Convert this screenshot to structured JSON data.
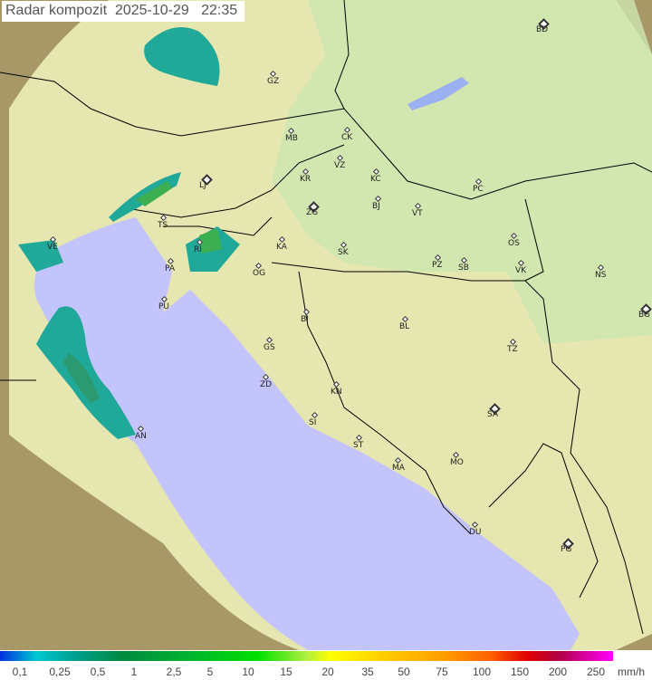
{
  "header": {
    "title": "Radar kompozit",
    "date": "2025-10-29",
    "time": "22:35"
  },
  "colors": {
    "sea": "#c4c4fc",
    "terrain": "#b8a878",
    "coverage": "#e8ecb0",
    "lowland": "#cfe8b0",
    "rain": "#20b0a0",
    "border": "#000000"
  },
  "legend": {
    "unit": "mm/h",
    "ticks": [
      "0,1",
      "0,25",
      "0,5",
      "1",
      "2,5",
      "5",
      "10",
      "15",
      "20",
      "35",
      "50",
      "75",
      "100",
      "150",
      "200",
      "250"
    ]
  },
  "cities": [
    "BD",
    "GZ",
    "MB",
    "CK",
    "VZ",
    "KR",
    "KC",
    "LJ",
    "PC",
    "BJ",
    "VT",
    "ZG",
    "TS",
    "VE",
    "RI",
    "KA",
    "SK",
    "OS",
    "PA",
    "PZ",
    "SB",
    "VK",
    "NS",
    "OG",
    "PU",
    "BI",
    "BL",
    "BG",
    "GS",
    "TZ",
    "ZD",
    "KN",
    "SA",
    "SI",
    "AN",
    "ST",
    "MO",
    "MA",
    "DU",
    "PG"
  ]
}
